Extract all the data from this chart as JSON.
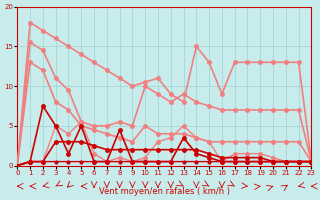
{
  "bg_color": "#c8ecec",
  "grid_color": "#a0d0d0",
  "xlabel": "Vent moyen/en rafales ( km/h )",
  "xlim": [
    0,
    23
  ],
  "ylim": [
    0,
    20
  ],
  "yticks": [
    0,
    5,
    10,
    15,
    20
  ],
  "xticks": [
    0,
    1,
    2,
    3,
    4,
    5,
    6,
    7,
    8,
    9,
    10,
    11,
    12,
    13,
    14,
    15,
    16,
    17,
    18,
    19,
    20,
    21,
    22,
    23
  ],
  "lines_light": [
    {
      "x": [
        0,
        1,
        2,
        3,
        4,
        5,
        6,
        7,
        8,
        9,
        10,
        11,
        12,
        13,
        14,
        15,
        16,
        17,
        18,
        19,
        20,
        21,
        22,
        23
      ],
      "y": [
        0,
        18,
        17,
        16,
        15,
        14,
        13,
        12,
        11,
        10,
        10.5,
        11,
        9,
        8,
        15,
        13,
        9,
        13,
        13,
        13,
        13,
        13,
        13,
        0.5
      ],
      "color": "#f08080",
      "lw": 1.2,
      "marker": "o",
      "ms": 2.5
    },
    {
      "x": [
        0,
        1,
        2,
        3,
        4,
        5,
        6,
        7,
        8,
        9,
        10,
        11,
        12,
        13,
        14,
        15,
        16,
        17,
        18,
        19,
        20,
        21,
        22,
        23
      ],
      "y": [
        0,
        15.5,
        14.5,
        11,
        9.5,
        5.5,
        5,
        5,
        5.5,
        5,
        10,
        9,
        8,
        9,
        8,
        7.5,
        7,
        7,
        7,
        7,
        7,
        7,
        7,
        0.5
      ],
      "color": "#f08080",
      "lw": 1.2,
      "marker": "o",
      "ms": 2.5
    },
    {
      "x": [
        0,
        1,
        2,
        3,
        4,
        5,
        6,
        7,
        8,
        9,
        10,
        11,
        12,
        13,
        14,
        15,
        16,
        17,
        18,
        19,
        20,
        21,
        22,
        23
      ],
      "y": [
        0,
        13,
        12,
        8,
        7,
        5,
        4.5,
        4,
        3.5,
        3,
        5,
        4,
        4,
        4,
        3.5,
        3,
        3,
        3,
        3,
        3,
        3,
        3,
        3,
        0.5
      ],
      "color": "#f08080",
      "lw": 1.2,
      "marker": "o",
      "ms": 2.5
    },
    {
      "x": [
        0,
        1,
        2,
        3,
        4,
        5,
        6,
        7,
        8,
        9,
        10,
        11,
        12,
        13,
        14,
        15,
        16,
        17,
        18,
        19,
        20,
        21,
        22,
        23
      ],
      "y": [
        0,
        0.5,
        0.5,
        5,
        4,
        5.5,
        1.5,
        0.5,
        1,
        0.5,
        1,
        3,
        3.5,
        5,
        3.5,
        3,
        0.5,
        1.5,
        1.5,
        1.5,
        1,
        0.5,
        0.5,
        0.5
      ],
      "color": "#f08080",
      "lw": 1.0,
      "marker": "o",
      "ms": 2.5
    }
  ],
  "lines_dark": [
    {
      "x": [
        0,
        1,
        2,
        3,
        4,
        5,
        6,
        7,
        8,
        9,
        10,
        11,
        12,
        13,
        14,
        15,
        16,
        17,
        18,
        19,
        20,
        21,
        22,
        23
      ],
      "y": [
        0,
        0.5,
        0.5,
        3,
        3,
        3,
        2.5,
        2,
        2,
        2,
        2,
        2,
        2,
        2,
        2,
        1.5,
        1,
        1,
        1,
        1,
        0.5,
        0.5,
        0.5,
        0.5
      ],
      "color": "#cc0000",
      "lw": 1.2,
      "marker": "o",
      "ms": 2.5
    },
    {
      "x": [
        0,
        1,
        2,
        3,
        4,
        5,
        6,
        7,
        8,
        9,
        10,
        11,
        12,
        13,
        14,
        15,
        16,
        17,
        18,
        19,
        20,
        21,
        22,
        23
      ],
      "y": [
        0,
        0.5,
        7.5,
        5,
        1.5,
        5,
        0.5,
        0.5,
        4.5,
        0.5,
        0.5,
        0.5,
        0.5,
        3.5,
        1.5,
        1,
        0.5,
        0.5,
        0.5,
        0.5,
        0.5,
        0.5,
        0.5,
        0.5
      ],
      "color": "#cc0000",
      "lw": 1.2,
      "marker": "o",
      "ms": 2.5
    },
    {
      "x": [
        0,
        1,
        2,
        3,
        4,
        5,
        6,
        7,
        8,
        9,
        10,
        11,
        12,
        13,
        14,
        15,
        16,
        17,
        18,
        19,
        20,
        21,
        22,
        23
      ],
      "y": [
        0,
        0.5,
        0.5,
        0.5,
        0.5,
        0.5,
        0.5,
        0.5,
        0.5,
        0.5,
        0.5,
        0.5,
        0.5,
        0.5,
        0.5,
        0.5,
        0.5,
        0.5,
        0.5,
        0.5,
        0.5,
        0.5,
        0.5,
        0.5
      ],
      "color": "#cc0000",
      "lw": 1.0,
      "marker": "o",
      "ms": 2.0
    }
  ],
  "arrows_x": [
    0,
    1,
    2,
    3,
    4,
    5,
    6,
    7,
    8,
    9,
    10,
    11,
    12,
    13,
    14,
    15,
    16,
    17,
    18,
    19,
    20,
    21,
    22,
    23
  ],
  "arrows_angles": [
    180,
    180,
    200,
    225,
    240,
    180,
    270,
    270,
    270,
    270,
    270,
    270,
    270,
    315,
    270,
    315,
    270,
    315,
    350,
    10,
    30,
    50,
    200,
    180
  ]
}
